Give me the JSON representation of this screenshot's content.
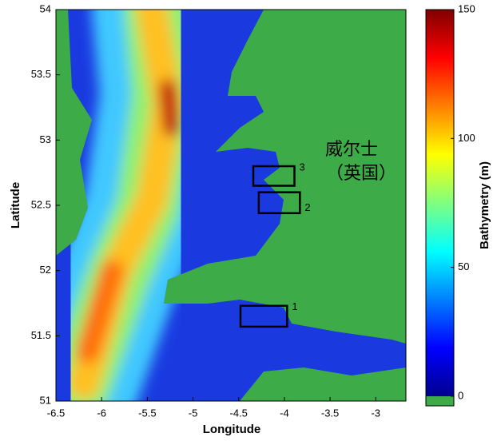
{
  "chart_data": {
    "type": "heatmap",
    "xlabel": "Longitude",
    "ylabel": "Latitude",
    "xlim": [
      -6.5,
      -2.67
    ],
    "ylim": [
      51,
      54
    ],
    "xticks": [
      -6.5,
      -6,
      -5.5,
      -5,
      -4.5,
      -4,
      -3.5,
      -3
    ],
    "yticks": [
      51,
      51.5,
      52,
      52.5,
      53,
      53.5,
      54
    ],
    "colorbar": {
      "label": "Bathymetry (m)",
      "lim": [
        0,
        150
      ],
      "ticks": [
        0,
        50,
        100,
        150
      ],
      "land_color": "#3dac48"
    },
    "annotation": [
      "威尔士",
      "（英国）"
    ],
    "boxes": [
      {
        "label": "1",
        "lon": [
          -4.48,
          -3.97
        ],
        "lat": [
          51.57,
          51.73
        ]
      },
      {
        "label": "2",
        "lon": [
          -4.28,
          -3.83
        ],
        "lat": [
          52.44,
          52.6
        ]
      },
      {
        "label": "3",
        "lon": [
          -4.34,
          -3.89
        ],
        "lat": [
          52.65,
          52.8
        ]
      }
    ]
  }
}
